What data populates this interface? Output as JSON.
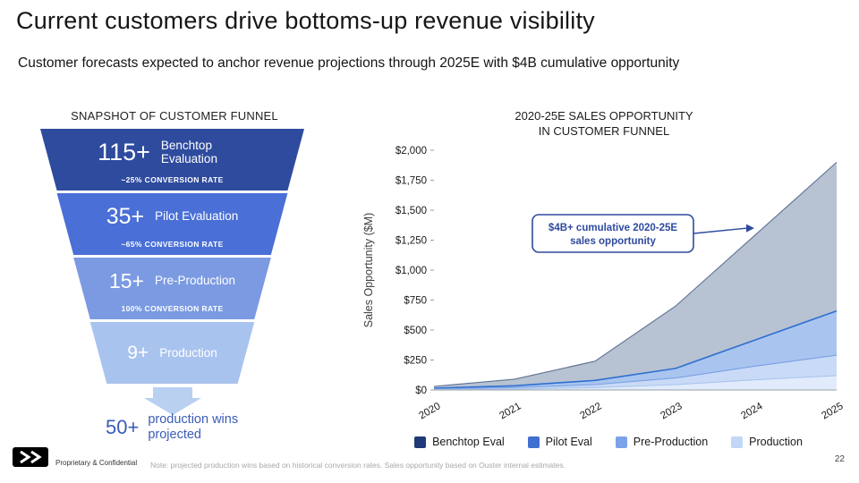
{
  "slide": {
    "title": "Current customers drive bottoms-up revenue visibility",
    "subtitle": "Customer forecasts expected to anchor revenue projections through 2025E with $4B cumulative opportunity",
    "page_number": "22",
    "confidential": "Proprietary & Confidential",
    "footnote": "Note: projected production wins based on historical conversion rates. Sales opportunity based on Ouster internal estimates."
  },
  "funnel": {
    "heading": "SNAPSHOT OF CUSTOMER FUNNEL",
    "stages": [
      {
        "count": "115+",
        "label": "Benchtop Evaluation",
        "conversion": "~25% CONVERSION RATE",
        "color": "#2e4b9e"
      },
      {
        "count": "35+",
        "label": "Pilot Evaluation",
        "conversion": "~65% CONVERSION RATE",
        "color": "#4a6fd6"
      },
      {
        "count": "15+",
        "label": "Pre-Production",
        "conversion": "100% CONVERSION RATE",
        "color": "#7b9ae2"
      },
      {
        "count": "9+",
        "label": "Production",
        "conversion": "",
        "color": "#a9c3ef"
      }
    ],
    "result_count": "50+",
    "result_label": "production wins projected",
    "arrow_color": "#b9d0f1"
  },
  "chart_data": {
    "type": "area",
    "title_lines": [
      "2020-25E SALES OPPORTUNITY",
      "IN CUSTOMER FUNNEL"
    ],
    "ylabel": "Sales Opportunity ($M)",
    "ylim": [
      0,
      2000
    ],
    "x": [
      "2020",
      "2021",
      "2022",
      "2023",
      "2024",
      "2025"
    ],
    "y_ticks": [
      "$0",
      "$250",
      "$500",
      "$750",
      "$1,000",
      "$1,250",
      "$1,500",
      "$1,750",
      "$2,000"
    ],
    "annotation_lines": [
      "$4B+ cumulative 2020-25E",
      "sales opportunity"
    ],
    "annotation_color": "#2e4a9e",
    "legend_position": "bottom",
    "grid": false,
    "series": [
      {
        "name": "Benchtop Eval",
        "swatch": "#1f3a77",
        "line": "#5f7194",
        "fill": "#b7c2d2",
        "values": [
          30,
          90,
          240,
          700,
          1300,
          1900
        ]
      },
      {
        "name": "Pilot Eval",
        "swatch": "#3f6fd1",
        "line": "#2f6fd0",
        "fill": "#a9c5ef",
        "values": [
          15,
          35,
          80,
          180,
          420,
          660
        ]
      },
      {
        "name": "Pre-Production",
        "swatch": "#7ba3e8",
        "line": "#7aa0e4",
        "fill": "#c9daf6",
        "values": [
          8,
          20,
          45,
          100,
          200,
          290
        ]
      },
      {
        "name": "Production",
        "swatch": "#c2d7f5",
        "line": "#a9c6ef",
        "fill": "#e1ebfb",
        "values": [
          3,
          8,
          20,
          45,
          85,
          120
        ]
      }
    ]
  }
}
